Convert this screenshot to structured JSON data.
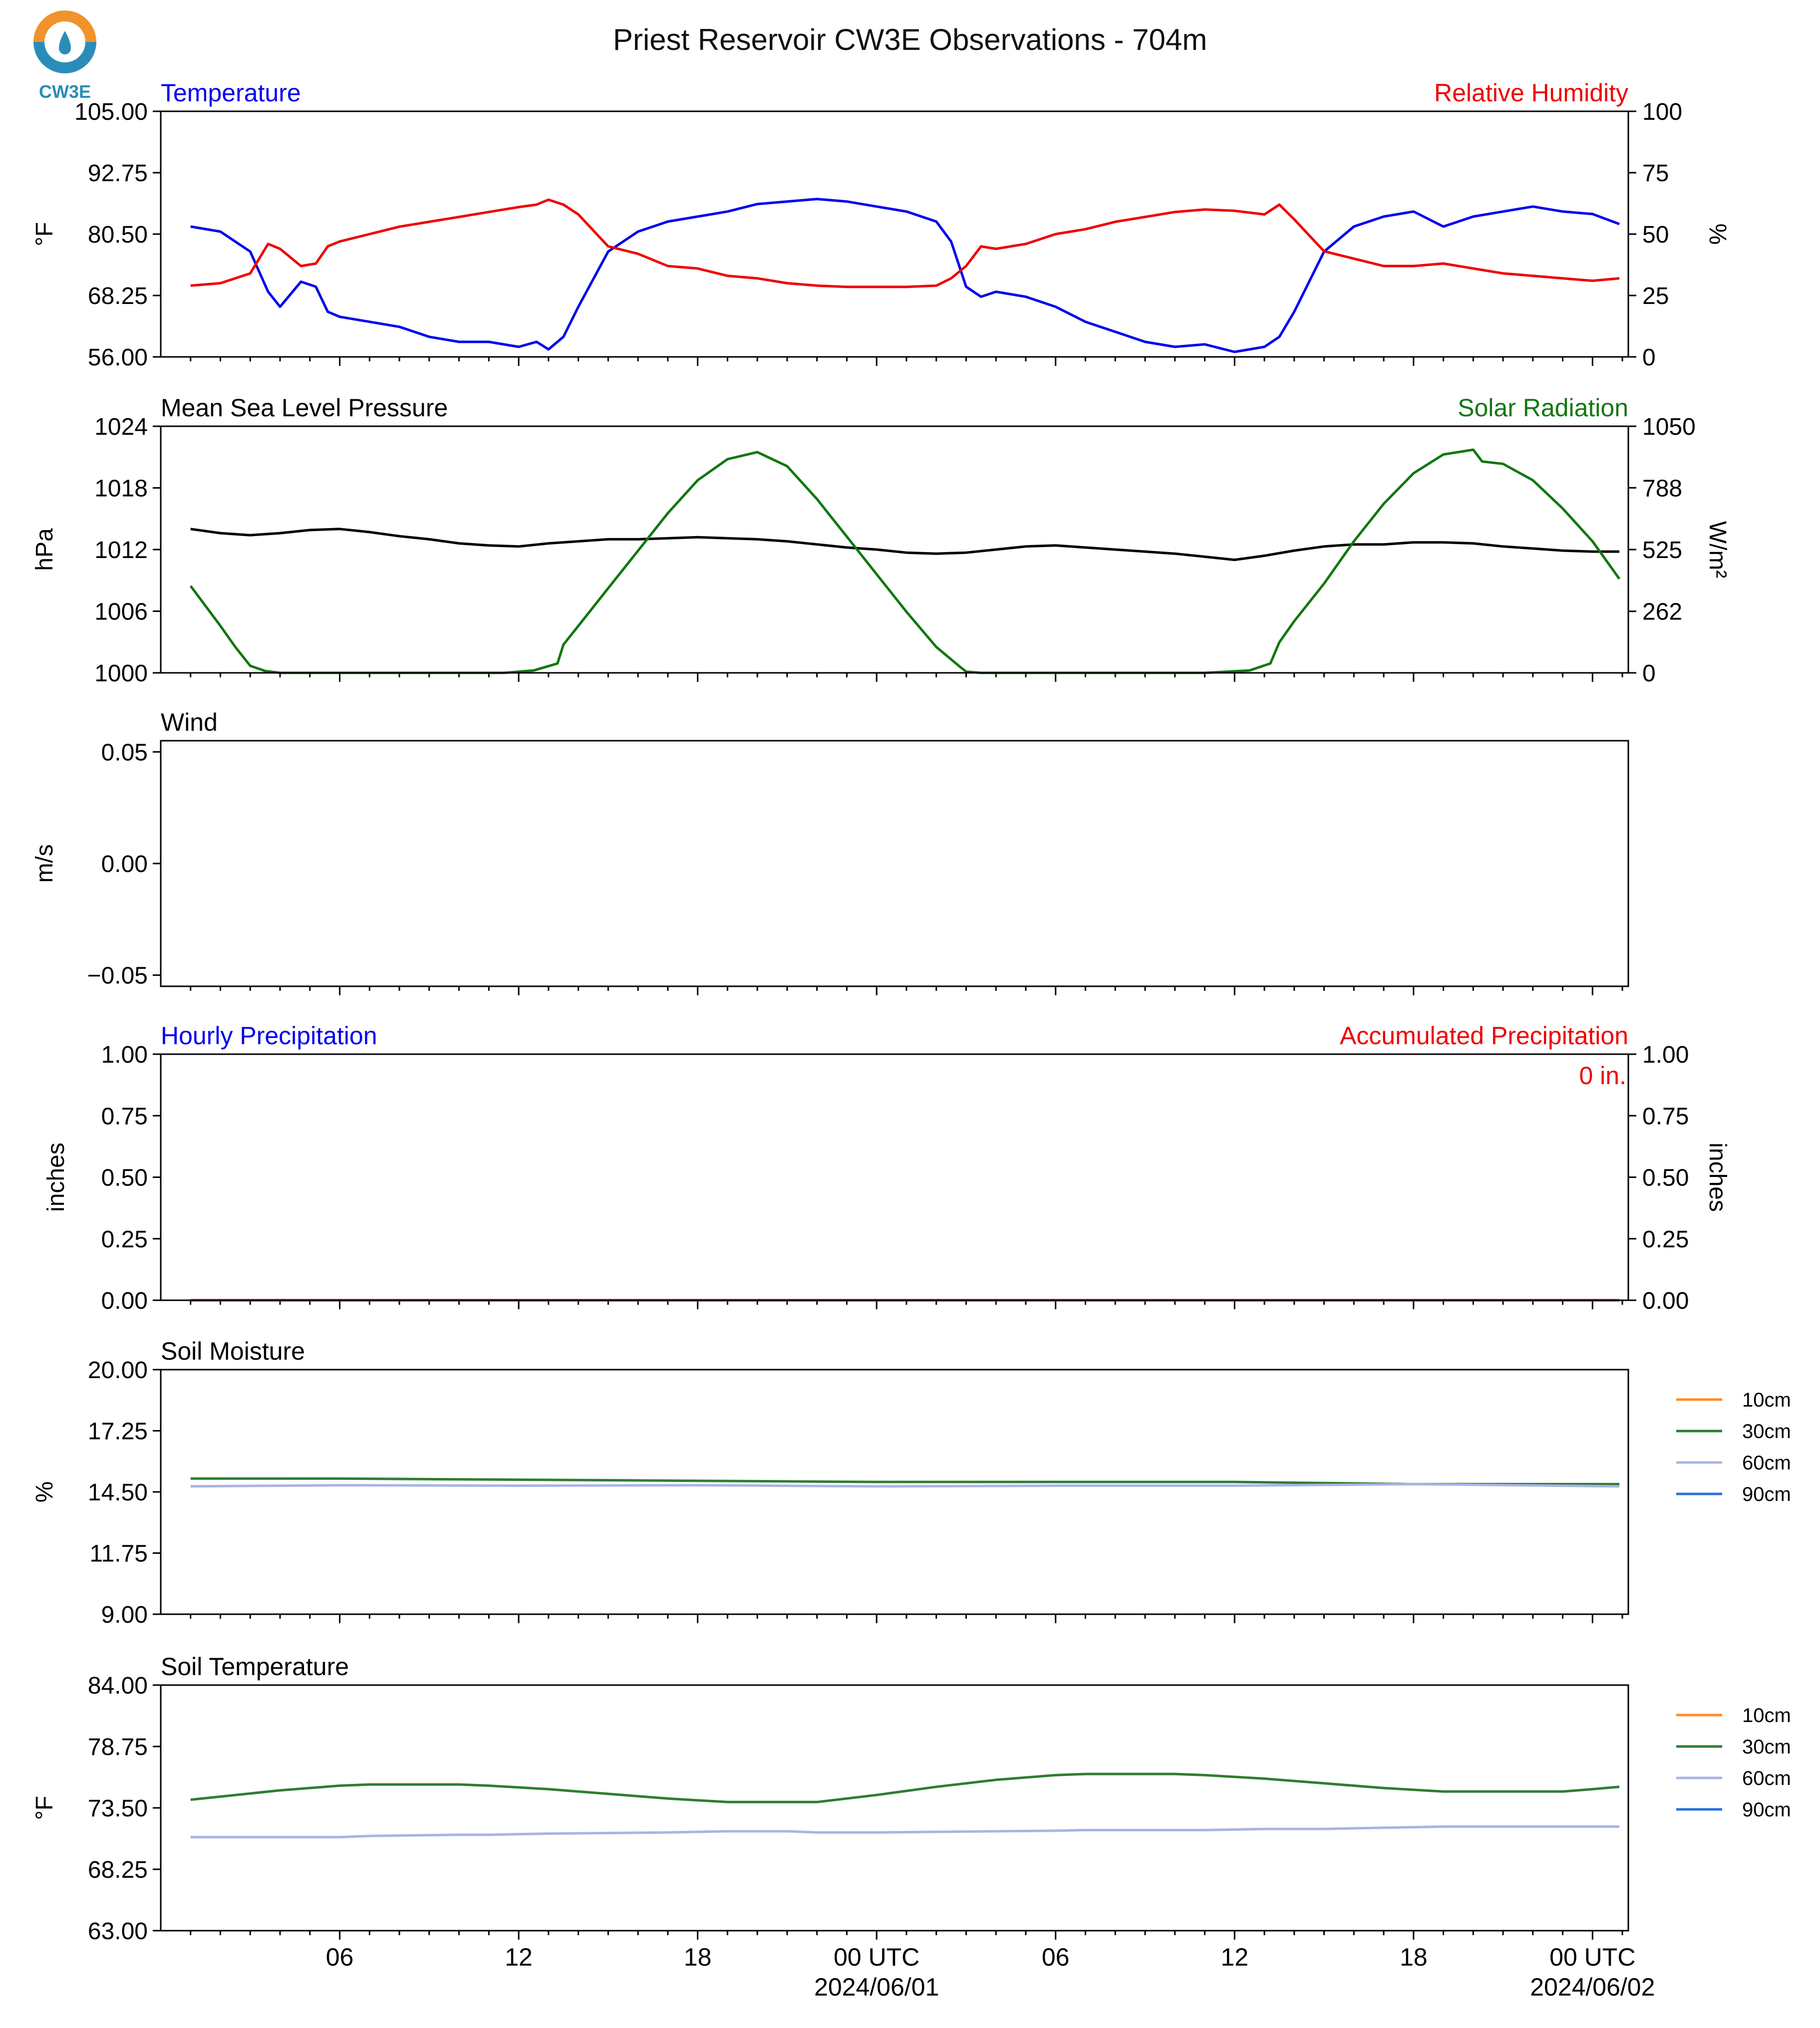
{
  "title": "Priest Reservoir CW3E Observations - 704m",
  "logo": {
    "text": "CW3E",
    "colors": {
      "ring_top": "#f0932b",
      "ring_bottom": "#2a8db8",
      "drop": "#2a8db8"
    }
  },
  "x_axis": {
    "tick_labels": [
      "06",
      "12",
      "18",
      "00 UTC",
      "06",
      "12",
      "18",
      "00 UTC"
    ],
    "date_labels": [
      "2024/06/01",
      "2024/06/02"
    ]
  },
  "colors": {
    "temperature": "#0000ee",
    "humidity": "#ee0000",
    "pressure": "#000000",
    "solar": "#117711",
    "soil_10cm": "#ff8c1a",
    "soil_30cm": "#2e7d32",
    "soil_60cm": "#a9b3e6",
    "soil_90cm": "#2a6fdb",
    "hourly_precip": "#0000ee",
    "accum_precip": "#ee0000"
  },
  "chart_data": [
    {
      "type": "line",
      "panel": "temperature-humidity",
      "left_title": "Temperature",
      "right_title": "Relative Humidity",
      "ylabel_left": "°F",
      "ylabel_right": "%",
      "ylim_left": [
        56.0,
        105.0
      ],
      "ylim_right": [
        0,
        100
      ],
      "yticks_left": [
        "56.00",
        "68.25",
        "80.50",
        "92.75",
        "105.00"
      ],
      "yticks_right": [
        "0",
        "25",
        "50",
        "75",
        "100"
      ],
      "x_hours": [
        1,
        2,
        3,
        3.6,
        4,
        4.7,
        5.2,
        5.6,
        6,
        7,
        8,
        9,
        10,
        11,
        12,
        12.6,
        13,
        13.5,
        14,
        15,
        16,
        17,
        18,
        19,
        20,
        21,
        22,
        23,
        24,
        25,
        26,
        26.5,
        27,
        27.5,
        28,
        29,
        30,
        31,
        32,
        33,
        34,
        35,
        36,
        37,
        37.5,
        38,
        39,
        40,
        41,
        42,
        43,
        44,
        45,
        46,
        47,
        48,
        48.9
      ],
      "series": [
        {
          "name": "Temperature",
          "axis": "left",
          "values": [
            82,
            81,
            77,
            69,
            66,
            71,
            70,
            65,
            64,
            63,
            62,
            60,
            59,
            59,
            58,
            59,
            57.5,
            60,
            66,
            77,
            81,
            83,
            84,
            85,
            86.5,
            87,
            87.5,
            87,
            86,
            85,
            83,
            79,
            70,
            68,
            69,
            68,
            66,
            63,
            61,
            59,
            58,
            58.5,
            57,
            58,
            60,
            65,
            77,
            82,
            84,
            85,
            82,
            84,
            85,
            86,
            85,
            84.5,
            82.5
          ]
        },
        {
          "name": "Relative Humidity",
          "axis": "right",
          "values": [
            29,
            30,
            34,
            46,
            44,
            37,
            38,
            45,
            47,
            50,
            53,
            55,
            57,
            59,
            61,
            62,
            64,
            62,
            58,
            45,
            42,
            37,
            36,
            33,
            32,
            30,
            29,
            28.5,
            28.5,
            28.5,
            29,
            32,
            37,
            45,
            44,
            46,
            50,
            52,
            55,
            57,
            59,
            60,
            59.5,
            58,
            62,
            56,
            43,
            40,
            37,
            37,
            38,
            36,
            34,
            33,
            32,
            31,
            32
          ]
        }
      ]
    },
    {
      "type": "line",
      "panel": "pressure-solar",
      "left_title": "Mean Sea Level Pressure",
      "right_title": "Solar Radiation",
      "ylabel_left": "hPa",
      "ylabel_right": "W/m²",
      "ylim_left": [
        1000,
        1024
      ],
      "ylim_right": [
        0,
        1050
      ],
      "yticks_left": [
        "1000",
        "1006",
        "1012",
        "1018",
        "1024"
      ],
      "yticks_right": [
        "0",
        "262",
        "525",
        "788",
        "1050"
      ],
      "x_hours": [
        1,
        2,
        3,
        4,
        5,
        6,
        7,
        8,
        9,
        10,
        11,
        12,
        13,
        14,
        15,
        16,
        17,
        18,
        19,
        20,
        21,
        22,
        23,
        24,
        25,
        26,
        27,
        28,
        29,
        30,
        31,
        32,
        33,
        34,
        35,
        36,
        37,
        38,
        39,
        40,
        41,
        42,
        43,
        44,
        45,
        46,
        47,
        48,
        48.9
      ],
      "series": [
        {
          "name": "Mean Sea Level Pressure",
          "axis": "left",
          "values": [
            1014,
            1013.6,
            1013.4,
            1013.6,
            1013.9,
            1014,
            1013.7,
            1013.3,
            1013,
            1012.6,
            1012.4,
            1012.3,
            1012.6,
            1012.8,
            1013,
            1013,
            1013.1,
            1013.2,
            1013.1,
            1013,
            1012.8,
            1012.5,
            1012.2,
            1012,
            1011.7,
            1011.6,
            1011.7,
            1012,
            1012.3,
            1012.4,
            1012.2,
            1012,
            1011.8,
            1011.6,
            1011.3,
            1011,
            1011.4,
            1011.9,
            1012.3,
            1012.5,
            1012.5,
            1012.7,
            1012.7,
            1012.6,
            1012.3,
            1012.1,
            1011.9,
            1011.8,
            1011.8
          ]
        },
        {
          "name": "Solar Radiation",
          "axis": "right",
          "x_hours": [
            1,
            2,
            2.5,
            3,
            3.5,
            4,
            6,
            8,
            10,
            11.5,
            12.5,
            13.3,
            13.5,
            14,
            15,
            16,
            17,
            18,
            19,
            20,
            21,
            22,
            23,
            24,
            25,
            26,
            26.8,
            27.0,
            27.5,
            29,
            31,
            33,
            35,
            36.5,
            37.2,
            37.5,
            38,
            39,
            40,
            41,
            42,
            43,
            44,
            44.3,
            45,
            46,
            47,
            48,
            48.9
          ],
          "values": [
            370,
            200,
            110,
            30,
            8,
            0,
            0,
            0,
            0,
            0,
            10,
            40,
            120,
            200,
            360,
            520,
            680,
            820,
            910,
            940,
            880,
            740,
            580,
            420,
            260,
            110,
            25,
            5,
            0,
            0,
            0,
            0,
            0,
            10,
            40,
            130,
            220,
            380,
            560,
            720,
            850,
            930,
            950,
            900,
            890,
            820,
            700,
            560,
            400
          ]
        }
      ]
    },
    {
      "type": "line",
      "panel": "wind",
      "left_title": "Wind",
      "ylabel_left": "m/s",
      "ylim_left": [
        -0.055,
        0.055
      ],
      "yticks_left": [
        "−0.05",
        "0.00",
        "0.05"
      ],
      "series": []
    },
    {
      "type": "line",
      "panel": "precipitation",
      "left_title": "Hourly Precipitation",
      "right_title": "Accumulated Precipitation",
      "ylabel_left": "inches",
      "ylabel_right": "inches",
      "ylim_left": [
        0,
        1
      ],
      "ylim_right": [
        0,
        1
      ],
      "yticks_left": [
        "0.00",
        "0.25",
        "0.50",
        "0.75",
        "1.00"
      ],
      "yticks_right": [
        "0.00",
        "0.25",
        "0.50",
        "0.75",
        "1.00"
      ],
      "annotation": "0 in.",
      "x_hours": [
        1,
        48.9
      ],
      "series": [
        {
          "name": "Hourly Precipitation",
          "axis": "left",
          "values": [
            0,
            0
          ]
        },
        {
          "name": "Accumulated Precipitation",
          "axis": "right",
          "values": [
            0,
            0
          ]
        }
      ]
    },
    {
      "type": "line",
      "panel": "soil-moisture",
      "left_title": "Soil Moisture",
      "ylabel_left": "%",
      "ylim_left": [
        9.0,
        20.0
      ],
      "yticks_left": [
        "9.00",
        "11.75",
        "14.50",
        "17.25",
        "20.00"
      ],
      "legend": [
        "10cm",
        "30cm",
        "60cm",
        "90cm"
      ],
      "x_hours": [
        1,
        6,
        12,
        18,
        24,
        30,
        36,
        42,
        48.9
      ],
      "series": [
        {
          "name": "30cm",
          "values": [
            15.1,
            15.1,
            15.05,
            15.0,
            14.95,
            14.95,
            14.95,
            14.85,
            14.85
          ]
        },
        {
          "name": "60cm",
          "values": [
            14.75,
            14.8,
            14.78,
            14.8,
            14.75,
            14.78,
            14.78,
            14.85,
            14.75
          ]
        }
      ]
    },
    {
      "type": "line",
      "panel": "soil-temperature",
      "left_title": "Soil Temperature",
      "ylabel_left": "°F",
      "ylim_left": [
        63.0,
        84.0
      ],
      "yticks_left": [
        "63.00",
        "68.25",
        "73.50",
        "78.75",
        "84.00"
      ],
      "legend": [
        "10cm",
        "30cm",
        "60cm",
        "90cm"
      ],
      "x_hours": [
        1,
        4,
        6,
        7,
        10,
        11,
        13,
        15,
        17,
        19,
        21,
        22,
        24,
        26,
        28,
        30,
        31,
        34,
        35,
        37,
        39,
        41,
        43,
        45,
        47,
        48,
        48.9
      ],
      "series": [
        {
          "name": "30cm",
          "values": [
            74.2,
            75.0,
            75.4,
            75.5,
            75.5,
            75.4,
            75.1,
            74.7,
            74.3,
            74.0,
            74.0,
            74.0,
            74.6,
            75.3,
            75.9,
            76.3,
            76.4,
            76.4,
            76.3,
            76.0,
            75.6,
            75.2,
            74.9,
            74.9,
            74.9,
            75.1,
            75.3
          ]
        },
        {
          "name": "60cm",
          "values": [
            71.0,
            71.0,
            71.0,
            71.1,
            71.2,
            71.2,
            71.3,
            71.35,
            71.4,
            71.5,
            71.5,
            71.4,
            71.4,
            71.45,
            71.5,
            71.55,
            71.6,
            71.6,
            71.6,
            71.7,
            71.7,
            71.8,
            71.9,
            71.9,
            71.9,
            71.9,
            71.9
          ]
        }
      ]
    }
  ]
}
